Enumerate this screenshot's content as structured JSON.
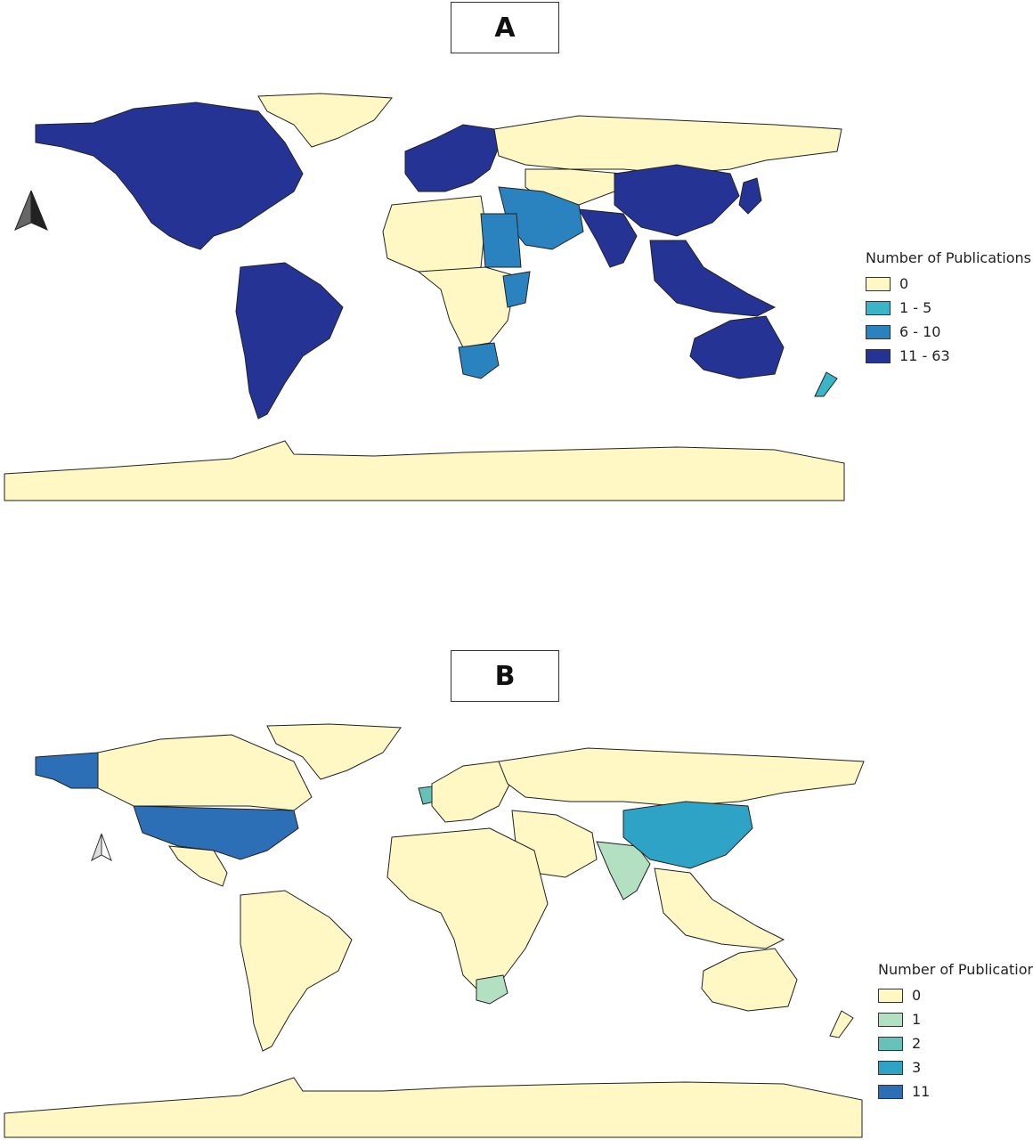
{
  "panels": [
    {
      "label": "A",
      "legend": {
        "title": "Number of Publications",
        "items": [
          {
            "label": "0",
            "color": "#fff7c4"
          },
          {
            "label": "1 - 5",
            "color": "#3ab5c8"
          },
          {
            "label": "6 - 10",
            "color": "#2a83bf"
          },
          {
            "label": "11 - 63",
            "color": "#253494"
          }
        ]
      },
      "regions": {
        "north-america": "#253494",
        "greenland": "#fff7c4",
        "south-america": "#253494",
        "europe": "#253494",
        "russia": "#fff7c4",
        "middle-east": "#2a83bf",
        "north-africa": "#fff7c4",
        "egypt-sudan": "#2a83bf",
        "central-africa": "#fff7c4",
        "east-africa": "#2a83bf",
        "south-africa": "#2a83bf",
        "central-asia": "#fff7c4",
        "china": "#253494",
        "india": "#253494",
        "southeast-asia": "#253494",
        "japan": "#253494",
        "australia": "#253494",
        "new-zealand": "#3ab5c8",
        "antarctica": "#fff7c4"
      }
    },
    {
      "label": "B",
      "legend": {
        "title": "Number of Publications",
        "items": [
          {
            "label": "0",
            "color": "#fff7c4"
          },
          {
            "label": "1",
            "color": "#b3e0c0"
          },
          {
            "label": "2",
            "color": "#66c2b8"
          },
          {
            "label": "3",
            "color": "#2fa3c6"
          },
          {
            "label": "11",
            "color": "#2c6fb6"
          }
        ]
      },
      "regions": {
        "alaska": "#2c6fb6",
        "canada": "#fff7c4",
        "usa": "#2c6fb6",
        "greenland": "#fff7c4",
        "mexico-central": "#fff7c4",
        "south-america": "#fff7c4",
        "uk": "#66c2b8",
        "europe": "#fff7c4",
        "russia": "#fff7c4",
        "africa": "#fff7c4",
        "south-africa": "#b3e0c0",
        "middle-east": "#fff7c4",
        "india": "#b3e0c0",
        "china": "#2fa3c6",
        "southeast-asia": "#fff7c4",
        "australia": "#fff7c4",
        "new-zealand": "#fff7c4",
        "antarctica": "#fff7c4"
      }
    }
  ]
}
